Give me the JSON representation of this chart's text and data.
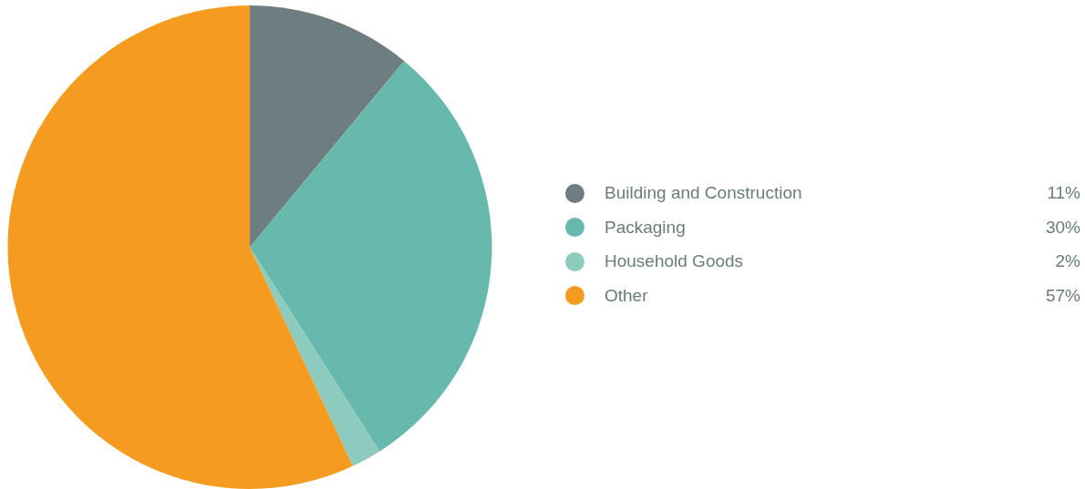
{
  "chart_data": {
    "type": "pie",
    "categories": [
      "Building and Construction",
      "Packaging",
      "Household Goods",
      "Other"
    ],
    "values": [
      11,
      30,
      2,
      57
    ],
    "colors": [
      "#6e7e80",
      "#67b9ad",
      "#8ecbbf",
      "#f59c20"
    ],
    "value_labels": [
      "11%",
      "30%",
      "2%",
      "57%"
    ],
    "legend": "right"
  }
}
